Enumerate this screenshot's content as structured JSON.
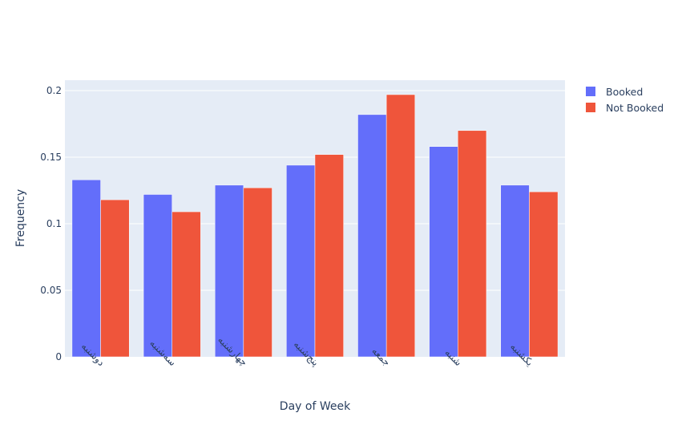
{
  "chart_data": {
    "type": "bar",
    "title": "",
    "xlabel": "Day of Week",
    "ylabel": "Frequency",
    "categories": [
      "دوشنبه",
      "سه‌شنبه",
      "چهارشنبه",
      "پنج‌شنبه",
      "جمعه",
      "شنبه",
      "یکشنبه"
    ],
    "series": [
      {
        "name": "Booked",
        "color": "#636efa",
        "values": [
          0.133,
          0.122,
          0.129,
          0.144,
          0.182,
          0.158,
          0.129
        ]
      },
      {
        "name": "Not Booked",
        "color": "#ef553b",
        "values": [
          0.118,
          0.109,
          0.127,
          0.152,
          0.197,
          0.17,
          0.124
        ]
      }
    ],
    "ylim": [
      0,
      0.2
    ],
    "yticks": [
      0,
      0.05,
      0.1,
      0.15,
      0.2
    ],
    "ytick_labels": [
      "0",
      "0.05",
      "0.1",
      "0.15",
      "0.2"
    ],
    "grid": true,
    "legend_position": "top-right",
    "plot_background": "#e5ecf6"
  }
}
